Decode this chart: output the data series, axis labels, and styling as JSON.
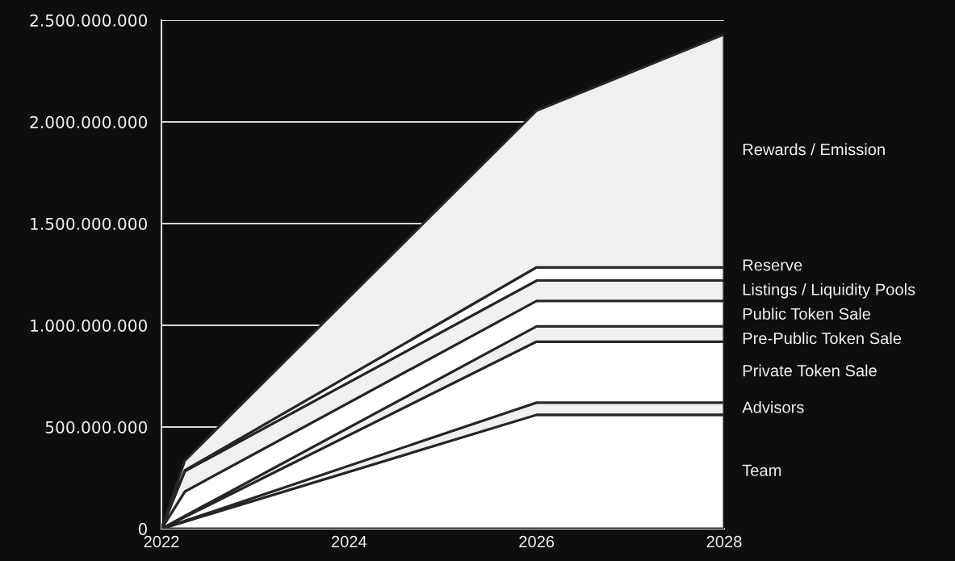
{
  "chart_data": {
    "type": "area",
    "stacked": true,
    "x": [
      2022,
      2022.25,
      2026,
      2028
    ],
    "series": [
      {
        "name": "Team",
        "color": "#ffffff",
        "values": [
          0,
          35000000,
          560000000,
          560000000
        ]
      },
      {
        "name": "Advisors",
        "color": "#f0f0f0",
        "values": [
          0,
          4000000,
          60000000,
          60000000
        ]
      },
      {
        "name": "Private Token Sale",
        "color": "#ffffff",
        "values": [
          0,
          19000000,
          300000000,
          300000000
        ]
      },
      {
        "name": "Pre-Public Token Sale",
        "color": "#f0f0f0",
        "values": [
          0,
          5000000,
          75000000,
          75000000
        ]
      },
      {
        "name": "Public Token Sale",
        "color": "#ffffff",
        "values": [
          0,
          120000000,
          125000000,
          125000000
        ]
      },
      {
        "name": "Listings / Liquidity Pools",
        "color": "#f0f0f0",
        "values": [
          0,
          100000000,
          100000000,
          100000000
        ]
      },
      {
        "name": "Reserve",
        "color": "#ffffff",
        "values": [
          0,
          4000000,
          65000000,
          65000000
        ]
      },
      {
        "name": "Rewards / Emission",
        "color": "#f0f0f0",
        "values": [
          0,
          48000000,
          770000000,
          1145000000
        ]
      }
    ],
    "xlim": [
      2022,
      2028
    ],
    "xticks": [
      2022,
      2024,
      2026,
      2028
    ],
    "ylim": [
      0,
      2500000000
    ],
    "yticks": [
      {
        "value": 0,
        "label": "0"
      },
      {
        "value": 500000000,
        "label": "500.000.000"
      },
      {
        "value": 1000000000,
        "label": "1.000.000.000"
      },
      {
        "value": 1500000000,
        "label": "1.500.000.000"
      },
      {
        "value": 2000000000,
        "label": "2.000.000.000"
      },
      {
        "value": 2500000000,
        "label": "2.500.000.000"
      }
    ],
    "grid": "y",
    "legend": false
  }
}
